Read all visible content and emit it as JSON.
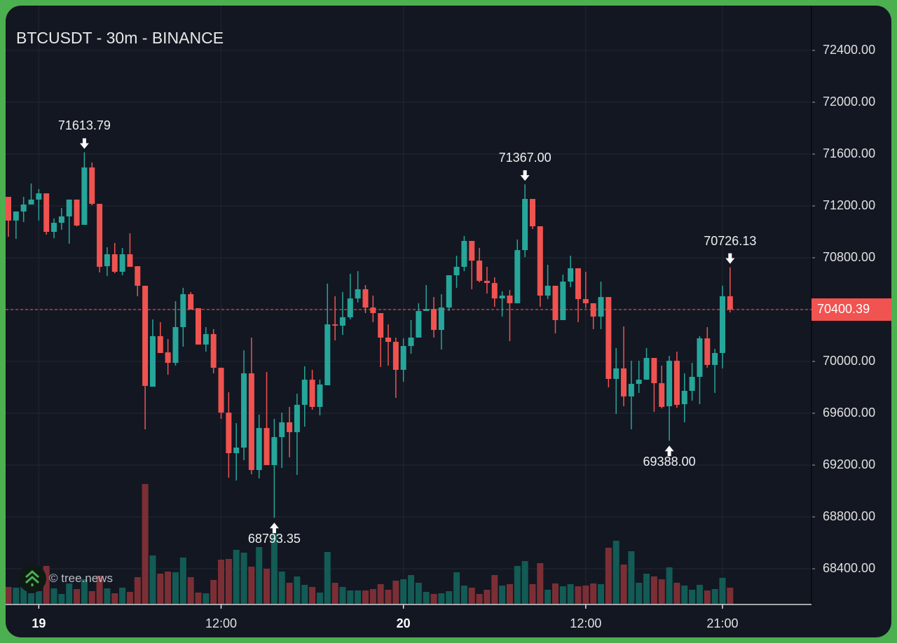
{
  "chart_data": {
    "type": "candlestick",
    "title": "BTCUSDT - 30m - BINANCE",
    "ylim": [
      68150,
      72650
    ],
    "y_ticks": [
      "72400.00",
      "72000.00",
      "71600.00",
      "71200.00",
      "70800.00",
      "70400.00",
      "70000.00",
      "69600.00",
      "69200.00",
      "68800.00",
      "68400.00"
    ],
    "x_ticks": [
      {
        "label": "19",
        "at_candle": 4,
        "bold": true
      },
      {
        "label": "12:00",
        "at_candle": 28,
        "bold": false
      },
      {
        "label": "20",
        "at_candle": 52,
        "bold": true
      },
      {
        "label": "12:00",
        "at_candle": 76,
        "bold": false
      },
      {
        "label": "21:00",
        "at_candle": 94,
        "bold": false
      }
    ],
    "grid": true,
    "colors": {
      "up": "#26a69a",
      "down": "#ef5350",
      "volume_up": "#135b55",
      "volume_down": "#7b2f35",
      "background": "#131722",
      "frame": "#4caf50"
    },
    "last_price": "70400.39",
    "ohlc": [
      [
        71270,
        71270,
        70962,
        71087
      ],
      [
        71087,
        71157,
        70946,
        71157
      ],
      [
        71157,
        71270,
        71076,
        71211
      ],
      [
        71211,
        71373,
        71211,
        71249
      ],
      [
        71249,
        71330,
        71087,
        71297
      ],
      [
        71297,
        71297,
        70978,
        71000
      ],
      [
        71000,
        71103,
        70951,
        71070
      ],
      [
        71070,
        71184,
        71016,
        71119
      ],
      [
        71119,
        71249,
        70908,
        71249
      ],
      [
        71249,
        71249,
        71043,
        71049
      ],
      [
        71054,
        71613.79,
        71054,
        71497
      ],
      [
        71497,
        71535,
        71205,
        71216
      ],
      [
        71216,
        71216,
        70687,
        70730
      ],
      [
        70735,
        70881,
        70659,
        70827
      ],
      [
        70827,
        70914,
        70681,
        70692
      ],
      [
        70692,
        70876,
        70665,
        70827
      ],
      [
        70827,
        70989,
        70730,
        70730
      ],
      [
        70735,
        70735,
        70503,
        70584
      ],
      [
        70584,
        70584,
        69476,
        69811
      ],
      [
        69805,
        70324,
        69805,
        70195
      ],
      [
        70195,
        70303,
        70065,
        70065
      ],
      [
        70070,
        70173,
        69897,
        69989
      ],
      [
        69989,
        70465,
        69968,
        70265
      ],
      [
        70265,
        70568,
        70114,
        70519
      ],
      [
        70519,
        70535,
        70400,
        70400
      ],
      [
        70411,
        70411,
        70130,
        70130
      ],
      [
        70130,
        70265,
        70076,
        70211
      ],
      [
        70211,
        70249,
        69908,
        69951
      ],
      [
        69951,
        69951,
        69557,
        69605
      ],
      [
        69605,
        69762,
        69103,
        69292
      ],
      [
        69292,
        69524,
        69081,
        69335
      ],
      [
        69335,
        70086,
        69238,
        69908
      ],
      [
        69908,
        70184,
        69130,
        69162
      ],
      [
        69162,
        69589,
        69097,
        69486
      ],
      [
        69486,
        69919,
        69200,
        69200
      ],
      [
        69200,
        69557,
        68793.35,
        69416
      ],
      [
        69416,
        69605,
        69178,
        69530
      ],
      [
        69530,
        69649,
        69260,
        69454
      ],
      [
        69454,
        69751,
        69124,
        69665
      ],
      [
        69665,
        69962,
        69497,
        69859
      ],
      [
        69859,
        69935,
        69627,
        69649
      ],
      [
        69649,
        69859,
        69584,
        69822
      ],
      [
        69816,
        70600,
        69816,
        70286
      ],
      [
        70286,
        70503,
        70162,
        70276
      ],
      [
        70276,
        70535,
        70205,
        70341
      ],
      [
        70341,
        70676,
        70324,
        70486
      ],
      [
        70486,
        70697,
        70454,
        70557
      ],
      [
        70557,
        70589,
        70373,
        70416
      ],
      [
        70416,
        70508,
        70303,
        70373
      ],
      [
        70373,
        70373,
        69957,
        70184
      ],
      [
        70184,
        70286,
        69968,
        70151
      ],
      [
        70151,
        70184,
        69719,
        69935
      ],
      [
        69935,
        70178,
        69843,
        70119
      ],
      [
        70119,
        70319,
        70059,
        70184
      ],
      [
        70184,
        70449,
        70184,
        70389
      ],
      [
        70389,
        70589,
        70389,
        70405
      ],
      [
        70405,
        70497,
        70184,
        70243
      ],
      [
        70243,
        70519,
        70092,
        70416
      ],
      [
        70416,
        70665,
        70389,
        70665
      ],
      [
        70665,
        70816,
        70568,
        70730
      ],
      [
        70730,
        70968,
        70697,
        70930
      ],
      [
        70930,
        70930,
        70557,
        70778
      ],
      [
        70778,
        70876,
        70611,
        70622
      ],
      [
        70622,
        70730,
        70524,
        70605
      ],
      [
        70605,
        70649,
        70422,
        70486
      ],
      [
        70486,
        70541,
        70346,
        70508
      ],
      [
        70508,
        70551,
        70157,
        70449
      ],
      [
        70449,
        70941,
        70449,
        70859
      ],
      [
        70859,
        71367,
        70805,
        71254
      ],
      [
        71254,
        71254,
        71022,
        71043
      ],
      [
        71043,
        71043,
        70422,
        70508
      ],
      [
        70508,
        70746,
        70481,
        70584
      ],
      [
        70584,
        70584,
        70216,
        70319
      ],
      [
        70319,
        70670,
        70319,
        70616
      ],
      [
        70616,
        70816,
        70573,
        70719
      ],
      [
        70719,
        70719,
        70303,
        70481
      ],
      [
        70481,
        70692,
        70411,
        70449
      ],
      [
        70449,
        70449,
        70249,
        70346
      ],
      [
        70346,
        70616,
        70249,
        70497
      ],
      [
        70497,
        70497,
        69800,
        69865
      ],
      [
        69865,
        70103,
        69595,
        69946
      ],
      [
        69946,
        70270,
        69654,
        69730
      ],
      [
        69730,
        70005,
        69476,
        69827
      ],
      [
        69827,
        70005,
        69757,
        69859
      ],
      [
        69859,
        70103,
        69859,
        70027
      ],
      [
        70027,
        70027,
        69611,
        69832
      ],
      [
        69832,
        69968,
        69638,
        69649
      ],
      [
        69654,
        70043,
        69388,
        70005
      ],
      [
        70005,
        70076,
        69643,
        69665
      ],
      [
        69670,
        69908,
        69530,
        69773
      ],
      [
        69773,
        69989,
        69697,
        69881
      ],
      [
        69881,
        70195,
        69670,
        70178
      ],
      [
        70178,
        70265,
        69951,
        69973
      ],
      [
        69973,
        70097,
        69757,
        70065
      ],
      [
        70065,
        70584,
        69946,
        70503
      ],
      [
        70503,
        70726.13,
        70378,
        70400.39
      ]
    ],
    "volume_relative": [
      24,
      23,
      24,
      15,
      18,
      54,
      22,
      14,
      29,
      21,
      35,
      18,
      40,
      22,
      15,
      23,
      17,
      38,
      171,
      69,
      43,
      46,
      45,
      66,
      38,
      16,
      15,
      34,
      63,
      64,
      77,
      73,
      53,
      81,
      50,
      100,
      46,
      30,
      39,
      27,
      24,
      16,
      74,
      30,
      24,
      19,
      19,
      19,
      21,
      28,
      20,
      33,
      35,
      41,
      30,
      17,
      14,
      15,
      18,
      45,
      26,
      23,
      14,
      20,
      41,
      26,
      28,
      54,
      61,
      28,
      58,
      20,
      29,
      25,
      28,
      25,
      26,
      29,
      28,
      80,
      90,
      56,
      75,
      30,
      43,
      39,
      35,
      52,
      30,
      26,
      20,
      27,
      19,
      21,
      37,
      23
    ],
    "annotations": [
      {
        "label": "71613.79",
        "at_candle": 10,
        "type": "high"
      },
      {
        "label": "68793.35",
        "at_candle": 35,
        "type": "low"
      },
      {
        "label": "71367.00",
        "at_candle": 68,
        "type": "high"
      },
      {
        "label": "69388.00",
        "at_candle": 87,
        "type": "low"
      },
      {
        "label": "70726.13",
        "at_candle": 95,
        "type": "high"
      }
    ]
  },
  "watermark": {
    "text": "© tree.news"
  }
}
